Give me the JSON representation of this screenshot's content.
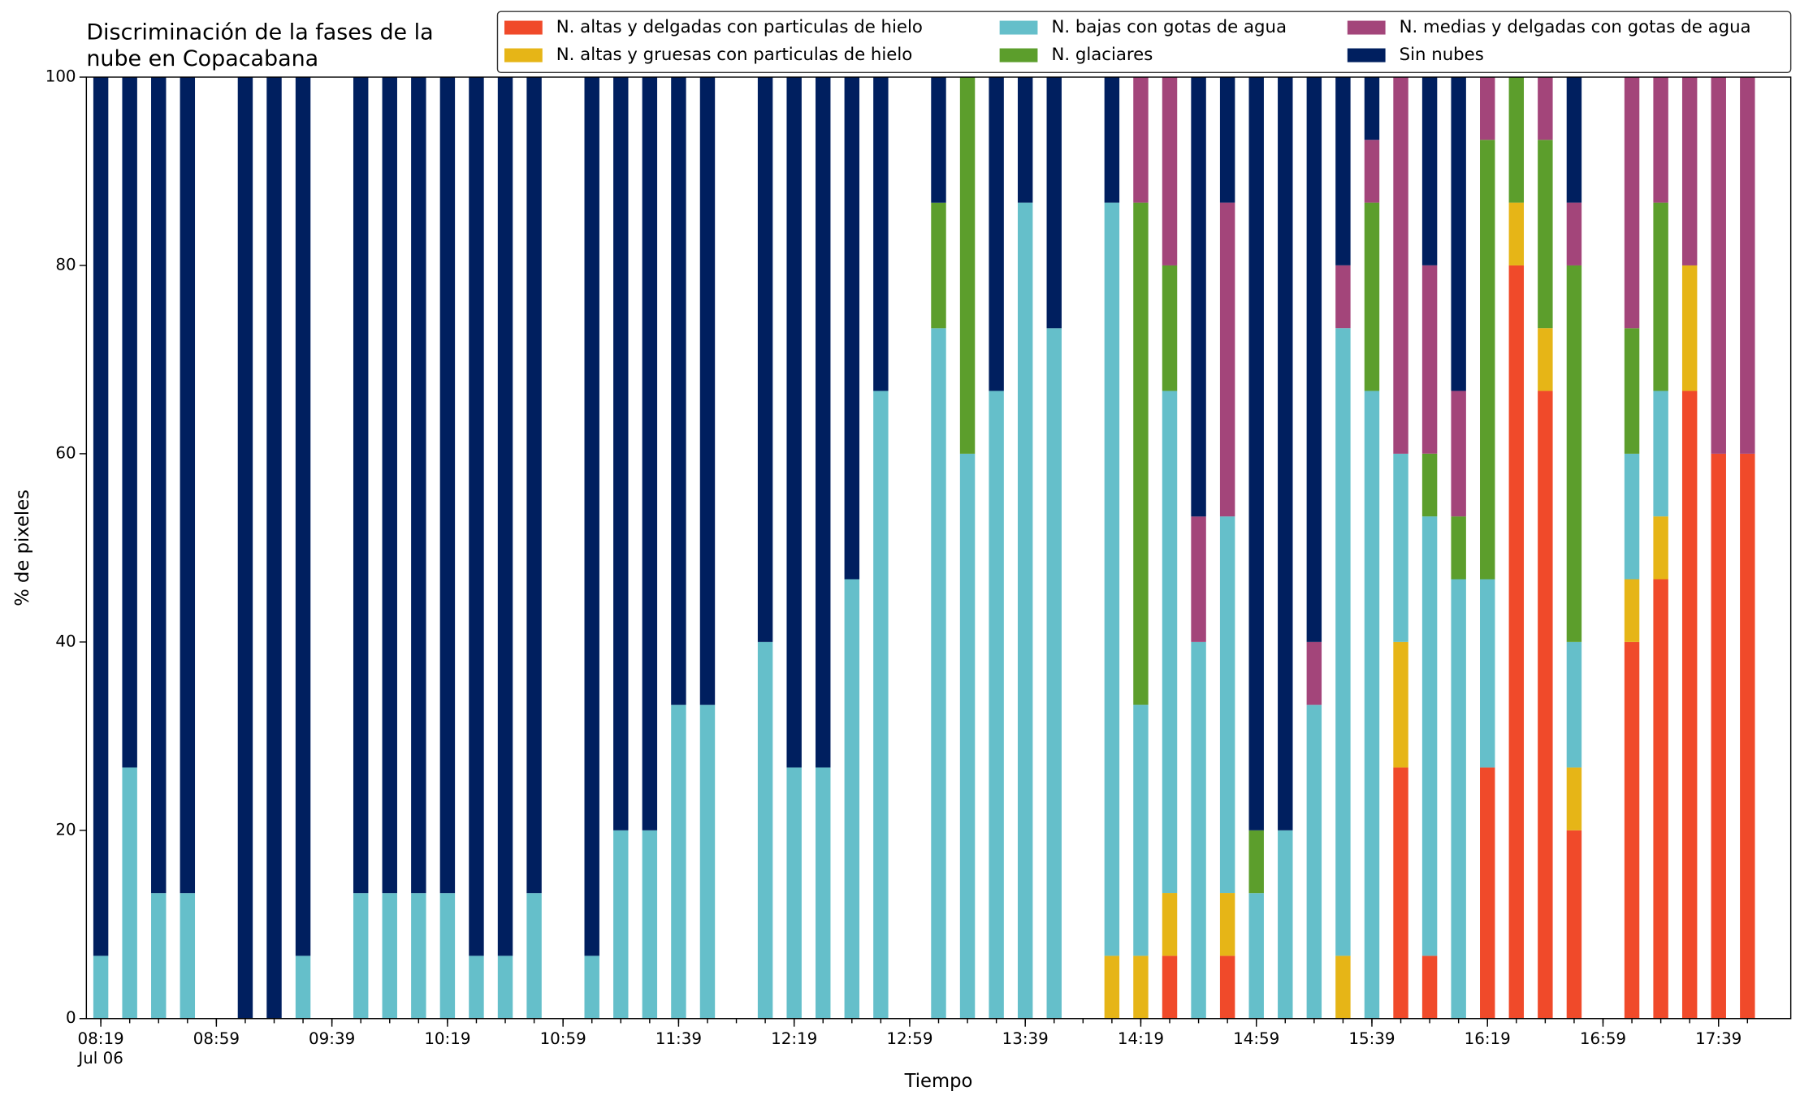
{
  "chart_data": {
    "type": "stacked_bar",
    "title": [
      "Discriminación de la fases de la",
      "nube en Copacabana"
    ],
    "x_label": "Tiempo",
    "y_label": "% de pixeles",
    "x": [
      "08:19",
      "08:29",
      "08:39",
      "08:49",
      "08:59",
      "09:09",
      "09:19",
      "09:29",
      "09:39",
      "09:49",
      "09:59",
      "10:09",
      "10:19",
      "10:29",
      "10:39",
      "10:49",
      "10:59",
      "11:09",
      "11:19",
      "11:29",
      "11:39",
      "11:49",
      "11:59",
      "12:09",
      "12:19",
      "12:29",
      "12:39",
      "12:49",
      "12:59",
      "13:09",
      "13:19",
      "13:29",
      "13:39",
      "13:49",
      "13:59",
      "14:09",
      "14:19",
      "14:29",
      "14:39",
      "14:49",
      "14:59",
      "15:09",
      "15:19",
      "15:29",
      "15:39",
      "15:49",
      "15:59",
      "16:09",
      "16:19",
      "16:29",
      "16:39",
      "16:49",
      "16:59",
      "17:09",
      "17:19",
      "17:29",
      "17:39",
      "17:49"
    ],
    "xlim": [
      "08:14",
      "18:04"
    ],
    "xticks": [
      "08:19",
      "08:59",
      "09:39",
      "10:19",
      "10:59",
      "11:39",
      "12:19",
      "12:59",
      "13:39",
      "14:19",
      "14:59",
      "15:39",
      "16:19",
      "16:59",
      "17:39"
    ],
    "xtick_sublabel": "Jul 06",
    "ylim": [
      0,
      100
    ],
    "yticks": [
      0,
      20,
      40,
      60,
      80,
      100
    ],
    "series": [
      {
        "name": "N. altas y delgadas con particulas de hielo",
        "color": "#f04a2a",
        "values": [
          0,
          0,
          0,
          0,
          0,
          0,
          0,
          0,
          0,
          0,
          0,
          0,
          0,
          0,
          0,
          0,
          0,
          0,
          0,
          0,
          0,
          0,
          0,
          0,
          0,
          0,
          0,
          0,
          0,
          0,
          0,
          0,
          0,
          0,
          0,
          0,
          0,
          6.67,
          0,
          6.67,
          0,
          0,
          0,
          0,
          0,
          26.67,
          6.67,
          0,
          26.67,
          80,
          66.67,
          20,
          0,
          40,
          46.67,
          66.67,
          60,
          60
        ]
      },
      {
        "name": "N. altas y gruesas con particulas de hielo",
        "color": "#e6b517",
        "values": [
          0,
          0,
          0,
          0,
          0,
          0,
          0,
          0,
          0,
          0,
          0,
          0,
          0,
          0,
          0,
          0,
          0,
          0,
          0,
          0,
          0,
          0,
          0,
          0,
          0,
          0,
          0,
          0,
          0,
          0,
          0,
          0,
          0,
          0,
          0,
          6.67,
          6.67,
          6.67,
          0,
          6.67,
          0,
          0,
          0,
          6.67,
          0,
          13.33,
          0,
          0,
          0,
          6.67,
          6.67,
          6.67,
          0,
          6.67,
          6.67,
          13.33,
          0,
          0
        ]
      },
      {
        "name": "N. bajas con gotas de agua",
        "color": "#65bfca",
        "values": [
          6.67,
          26.67,
          13.33,
          13.33,
          0,
          0,
          0,
          6.67,
          0,
          13.33,
          13.33,
          13.33,
          13.33,
          6.67,
          6.67,
          13.33,
          0,
          6.67,
          20,
          20,
          33.33,
          33.33,
          0,
          40,
          26.67,
          26.67,
          46.67,
          66.67,
          0,
          73.33,
          60,
          66.67,
          86.67,
          73.33,
          0,
          80,
          26.67,
          53.33,
          40,
          40,
          13.33,
          20,
          33.33,
          66.67,
          66.67,
          20,
          46.67,
          46.67,
          20,
          0,
          0,
          13.33,
          0,
          13.33,
          13.33,
          0,
          0,
          0
        ]
      },
      {
        "name": "N. glaciares",
        "color": "#5c9e2c",
        "values": [
          0,
          0,
          0,
          0,
          0,
          0,
          0,
          0,
          0,
          0,
          0,
          0,
          0,
          0,
          0,
          0,
          0,
          0,
          0,
          0,
          0,
          0,
          0,
          0,
          0,
          0,
          0,
          0,
          0,
          13.33,
          40,
          0,
          0,
          0,
          0,
          0,
          53.33,
          13.33,
          0,
          0,
          6.67,
          0,
          0,
          0,
          20,
          0,
          6.67,
          6.67,
          46.67,
          13.33,
          20,
          40,
          0,
          13.33,
          20,
          0,
          0,
          0
        ]
      },
      {
        "name": "N. medias y delgadas con gotas de agua",
        "color": "#a3457a",
        "values": [
          0,
          0,
          0,
          0,
          0,
          0,
          0,
          0,
          0,
          0,
          0,
          0,
          0,
          0,
          0,
          0,
          0,
          0,
          0,
          0,
          0,
          0,
          0,
          0,
          0,
          0,
          0,
          0,
          0,
          0,
          0,
          0,
          0,
          0,
          0,
          0,
          13.33,
          20,
          13.33,
          33.33,
          0,
          0,
          6.67,
          6.67,
          6.67,
          40,
          20,
          13.33,
          6.67,
          0,
          6.67,
          6.67,
          0,
          26.67,
          13.33,
          20,
          40,
          40
        ]
      },
      {
        "name": "Sin nubes",
        "color": "#001f5f",
        "values": [
          93.33,
          73.33,
          86.67,
          86.67,
          0,
          100,
          100,
          93.33,
          0,
          86.67,
          86.67,
          86.67,
          86.67,
          93.33,
          93.33,
          86.67,
          0,
          93.33,
          80,
          80,
          66.67,
          66.67,
          0,
          60,
          73.33,
          73.33,
          53.33,
          33.33,
          0,
          13.33,
          0,
          33.33,
          13.33,
          26.67,
          0,
          13.33,
          0,
          0,
          46.67,
          13.33,
          80,
          80,
          60,
          20,
          6.67,
          0,
          20,
          33.33,
          0,
          0,
          0,
          13.33,
          0,
          0,
          0,
          0,
          0,
          0
        ]
      }
    ]
  }
}
